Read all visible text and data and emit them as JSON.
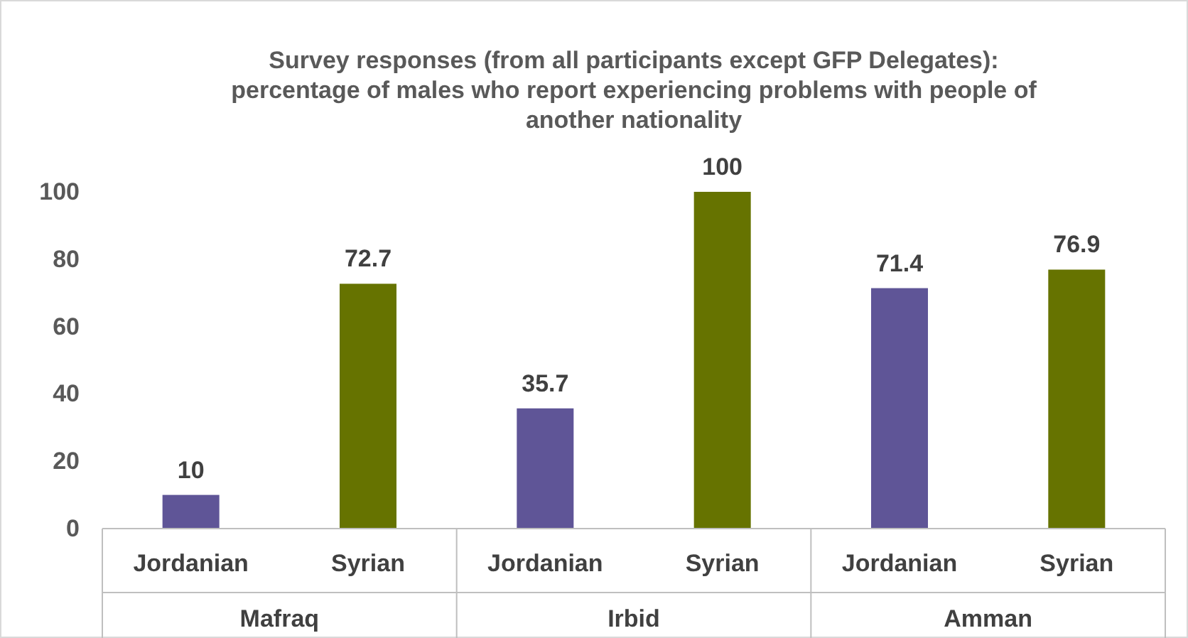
{
  "chart_data": {
    "type": "bar",
    "title": "Survey responses (from all participants except GFP Delegates): percentage of males who report experiencing problems with people of another nationality",
    "categories": [
      "Mafraq",
      "Irbid",
      "Amman"
    ],
    "series": [
      {
        "name": "Jordanian",
        "color": "#5f5597",
        "values": [
          10,
          35.7,
          71.4
        ]
      },
      {
        "name": "Syrian",
        "color": "#667300",
        "values": [
          72.7,
          100,
          76.9
        ]
      }
    ],
    "ylim": [
      0,
      100
    ],
    "yticks": [
      0,
      20,
      40,
      60,
      80,
      100
    ],
    "grid": false,
    "data_labels": true
  }
}
